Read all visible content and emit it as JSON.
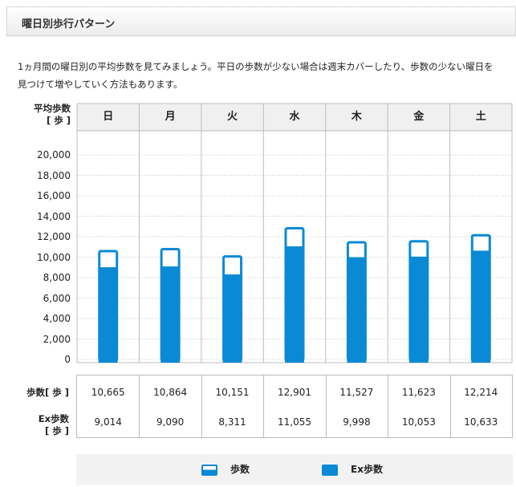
{
  "header": {
    "title": "曜日別歩行パターン"
  },
  "intro": "1ヵ月間の曜日別の平均歩数を見てみましょう。平日の歩数が少ない場合は週末カバーしたり、歩数の少ない曜日を見つけて増やしていく方法もあります。",
  "colors": {
    "bar": "#0a8ad5",
    "header_bg": "#f0f0f0",
    "grid": "#c8c8c8"
  },
  "chart_data": {
    "type": "bar",
    "ylabel_line1": "平均歩数",
    "ylabel_line2": "[ 歩 ]",
    "categories": [
      "日",
      "月",
      "火",
      "水",
      "木",
      "金",
      "土"
    ],
    "yticks": [
      "20,000",
      "18,000",
      "16,000",
      "14,000",
      "12,000",
      "10,000",
      "8,000",
      "6,000",
      "4,000",
      "2,000",
      "0"
    ],
    "ylim": [
      0,
      20000
    ],
    "series": [
      {
        "name": "歩数",
        "values": [
          10665,
          10864,
          10151,
          12901,
          11527,
          11623,
          12214
        ]
      },
      {
        "name": "Ex歩数",
        "values": [
          9014,
          9090,
          8311,
          11055,
          9998,
          10053,
          10633
        ]
      }
    ],
    "grid": true
  },
  "table": {
    "steps_label_line1": "歩数",
    "steps_label_line2": "[ 歩 ]",
    "ex_label_line1": "Ex歩数",
    "ex_label_line2": "[ 歩 ]",
    "steps": [
      "10,665",
      "10,864",
      "10,151",
      "12,901",
      "11,527",
      "11,623",
      "12,214"
    ],
    "ex": [
      "9,014",
      "9,090",
      "8,311",
      "11,055",
      "9,998",
      "10,053",
      "10,633"
    ]
  },
  "legend": {
    "steps": "歩数",
    "ex": "Ex歩数"
  }
}
